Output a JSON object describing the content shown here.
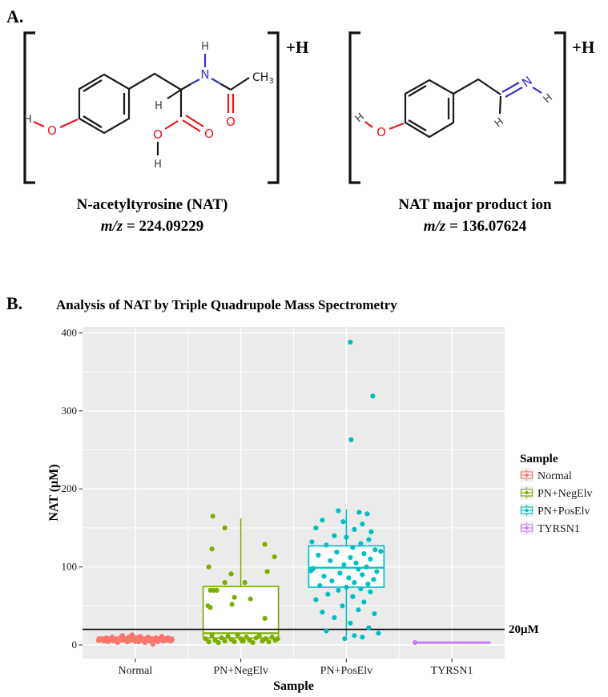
{
  "panel_a": {
    "label": "A.",
    "atom_labels": {
      "h": "H",
      "o": "O",
      "n": "N",
      "ch": "CH",
      "ch_sub": "3"
    },
    "molecules": [
      {
        "charge": "+H",
        "caption": "N-acetyltyrosine (NAT)",
        "mz_italic": "m/z",
        "mz_rest": " = 224.09229"
      },
      {
        "charge": "+H",
        "caption": "NAT major product ion",
        "mz_italic": "m/z",
        "mz_rest": " = 136.07624"
      }
    ]
  },
  "panel_b": {
    "label": "B.",
    "title": "Analysis of NAT by Triple Quadrupole Mass Spectrometry",
    "chart_data": {
      "type": "boxplot",
      "title": "Analysis of NAT by Triple Quadrupole Mass Spectrometry",
      "xlabel": "Sample",
      "ylabel": "NAT (μM)",
      "ylim": [
        0,
        400
      ],
      "yticks": [
        0,
        100,
        200,
        300,
        400
      ],
      "grid": "ggplot-gray",
      "legend_position": "right",
      "legend_title": "Sample",
      "reference_line": {
        "value": 20,
        "label": "20μM"
      },
      "groups": [
        {
          "name": "Normal",
          "color": "#F8766D",
          "box": {
            "low": 1,
            "q1": 4,
            "median": 6.5,
            "q3": 10,
            "high": 13
          },
          "points": [
            [
              -46,
              6
            ],
            [
              -42,
              8
            ],
            [
              -39,
              5
            ],
            [
              -36,
              9
            ],
            [
              -34,
              4
            ],
            [
              -31,
              7
            ],
            [
              -29,
              10
            ],
            [
              -27,
              5
            ],
            [
              -24,
              8
            ],
            [
              -22,
              3
            ],
            [
              -20,
              6
            ],
            [
              -18,
              10
            ],
            [
              -16,
              12
            ],
            [
              -14,
              6
            ],
            [
              -12,
              8
            ],
            [
              -10,
              4
            ],
            [
              -8,
              10
            ],
            [
              -6,
              6
            ],
            [
              -4,
              13
            ],
            [
              -2,
              7
            ],
            [
              0,
              5
            ],
            [
              2,
              9
            ],
            [
              4,
              4
            ],
            [
              6,
              11
            ],
            [
              8,
              6
            ],
            [
              10,
              8
            ],
            [
              12,
              3
            ],
            [
              14,
              7
            ],
            [
              16,
              10
            ],
            [
              18,
              5
            ],
            [
              20,
              8
            ],
            [
              22,
              1
            ],
            [
              24,
              6
            ],
            [
              26,
              9
            ],
            [
              28,
              4
            ],
            [
              31,
              7
            ],
            [
              33,
              11
            ],
            [
              35,
              5
            ],
            [
              37,
              8
            ],
            [
              39,
              6
            ],
            [
              41,
              9
            ],
            [
              44,
              5
            ],
            [
              46,
              7
            ]
          ]
        },
        {
          "name": "PN+NegElv",
          "color": "#7CAE00",
          "box": {
            "low": 2,
            "q1": 9,
            "median": 15,
            "q3": 75,
            "high": 162
          },
          "points": [
            [
              -35,
              165
            ],
            [
              -20,
              150
            ],
            [
              30,
              129
            ],
            [
              -36,
              123
            ],
            [
              42,
              113
            ],
            [
              -40,
              100
            ],
            [
              33,
              94
            ],
            [
              -12,
              91
            ],
            [
              -20,
              80
            ],
            [
              5,
              80
            ],
            [
              -38,
              70
            ],
            [
              -34,
              70
            ],
            [
              -30,
              70
            ],
            [
              -8,
              61
            ],
            [
              12,
              59
            ],
            [
              -11,
              52
            ],
            [
              -41,
              50
            ],
            [
              -38,
              48
            ],
            [
              30,
              34
            ],
            [
              -44,
              8
            ],
            [
              -40,
              4
            ],
            [
              -36,
              12
            ],
            [
              -32,
              6
            ],
            [
              -28,
              3
            ],
            [
              -24,
              9
            ],
            [
              -20,
              5
            ],
            [
              -16,
              11
            ],
            [
              -12,
              7
            ],
            [
              -8,
              4
            ],
            [
              -4,
              13
            ],
            [
              0,
              8
            ],
            [
              3,
              5
            ],
            [
              7,
              10
            ],
            [
              11,
              6
            ],
            [
              15,
              3
            ],
            [
              19,
              9
            ],
            [
              23,
              12
            ],
            [
              27,
              5
            ],
            [
              31,
              8
            ],
            [
              35,
              4
            ],
            [
              39,
              10
            ],
            [
              43,
              6
            ],
            [
              46,
              8
            ]
          ]
        },
        {
          "name": "PN+PosElv",
          "color": "#00BFC4",
          "box": {
            "low": 11,
            "q1": 74,
            "median": 99,
            "q3": 127,
            "high": 174
          },
          "points": [
            [
              5,
              388
            ],
            [
              33,
              319
            ],
            [
              6,
              263
            ],
            [
              -10,
              172
            ],
            [
              16,
              170
            ],
            [
              26,
              168
            ],
            [
              -30,
              160
            ],
            [
              -4,
              158
            ],
            [
              20,
              155
            ],
            [
              -38,
              150
            ],
            [
              10,
              148
            ],
            [
              31,
              145
            ],
            [
              -15,
              140
            ],
            [
              0,
              138
            ],
            [
              28,
              135
            ],
            [
              -43,
              132
            ],
            [
              18,
              130
            ],
            [
              -25,
              128
            ],
            [
              8,
              125
            ],
            [
              36,
              122
            ],
            [
              43,
              120
            ],
            [
              -12,
              119
            ],
            [
              22,
              117
            ],
            [
              -35,
              115
            ],
            [
              5,
              112
            ],
            [
              30,
              110
            ],
            [
              -20,
              108
            ],
            [
              12,
              105
            ],
            [
              -3,
              103
            ],
            [
              25,
              100
            ],
            [
              -41,
              98
            ],
            [
              15,
              97
            ],
            [
              -44,
              95
            ],
            [
              38,
              94
            ],
            [
              -8,
              92
            ],
            [
              20,
              90
            ],
            [
              -28,
              88
            ],
            [
              3,
              86
            ],
            [
              34,
              84
            ],
            [
              -18,
              82
            ],
            [
              10,
              80
            ],
            [
              27,
              78
            ],
            [
              -33,
              76
            ],
            [
              0,
              74
            ],
            [
              18,
              72
            ],
            [
              -10,
              70
            ],
            [
              30,
              68
            ],
            [
              -23,
              65
            ],
            [
              8,
              62
            ],
            [
              -38,
              58
            ],
            [
              22,
              55
            ],
            [
              -5,
              50
            ],
            [
              15,
              45
            ],
            [
              35,
              40
            ],
            [
              -30,
              42
            ],
            [
              -15,
              35
            ],
            [
              5,
              28
            ],
            [
              28,
              22
            ],
            [
              -25,
              18
            ],
            [
              40,
              15
            ],
            [
              10,
              12
            ],
            [
              20,
              10
            ],
            [
              -2,
              8
            ]
          ]
        },
        {
          "name": "TYRSN1",
          "color": "#C77CFF",
          "box": {
            "low": 3,
            "q1": 3,
            "median": 3,
            "q3": 3,
            "high": 3
          },
          "points": [
            [
              -46,
              3
            ]
          ]
        }
      ]
    }
  },
  "colors": {
    "panel_bg": "#EBEBEB",
    "grid_major": "#FFFFFF",
    "grid_minor": "#FFFFFF",
    "ref_line": "#000000",
    "bond_black": "#1a1a1a",
    "atom_red": "#E8191A",
    "atom_blue": "#3434CC",
    "legend_key_bg": "#F0F0F0",
    "normal": "#F8766D",
    "pn_negelv": "#7CAE00",
    "pn_poselv": "#00BFC4",
    "tyrsn1": "#C77CFF"
  }
}
